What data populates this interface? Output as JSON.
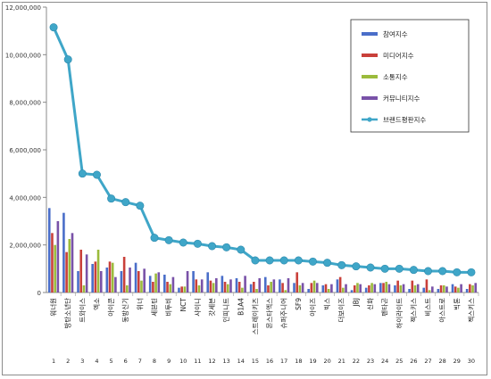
{
  "chart_data": {
    "type": "bar",
    "title": "",
    "xlabel": "",
    "ylabel": "",
    "ylim": [
      0,
      12000000
    ],
    "yticks": [
      "0",
      "2,000,000",
      "4,000,000",
      "6,000,000",
      "8,000,000",
      "10,000,000",
      "12,000,000"
    ],
    "grid": false,
    "legend_position": "top-right",
    "categories": [
      "워너원",
      "방탄소년단",
      "트와이스",
      "엑소",
      "아이콘",
      "동방신기",
      "위너",
      "세븐틴",
      "비투비",
      "NCT",
      "샤이니",
      "갓세븐",
      "인피니트",
      "B1A4",
      "스트레이키즈",
      "몬스타엑스",
      "슈퍼주니어",
      "SF9",
      "아이즈",
      "빅스",
      "더보이즈",
      "JBJ",
      "신화",
      "펜타곤",
      "하이라이트",
      "젝스키스",
      "비스트",
      "아스트로",
      "빅톤",
      "젝스키스"
    ],
    "rank_labels": [
      "1",
      "2",
      "3",
      "4",
      "5",
      "6",
      "7",
      "8",
      "9",
      "10",
      "11",
      "12",
      "13",
      "14",
      "15",
      "16",
      "17",
      "18",
      "19",
      "20",
      "21",
      "22",
      "23",
      "24",
      "25",
      "26",
      "27",
      "28",
      "29",
      "30"
    ],
    "series": [
      {
        "name": "참여지수",
        "color": "#4a6ec9",
        "values": [
          3550000,
          3350000,
          900000,
          1200000,
          1050000,
          900000,
          1250000,
          700000,
          750000,
          200000,
          900000,
          850000,
          700000,
          600000,
          350000,
          650000,
          550000,
          400000,
          150000,
          300000,
          550000,
          100000,
          200000,
          400000,
          300000,
          150000,
          200000,
          150000,
          350000,
          150000
        ]
      },
      {
        "name": "미디어지수",
        "color": "#c9403a",
        "values": [
          2500000,
          1700000,
          1800000,
          1300000,
          1300000,
          1500000,
          900000,
          450000,
          450000,
          250000,
          550000,
          500000,
          450000,
          450000,
          450000,
          300000,
          400000,
          850000,
          400000,
          350000,
          650000,
          300000,
          300000,
          400000,
          500000,
          500000,
          550000,
          300000,
          250000,
          350000
        ]
      },
      {
        "name": "소통지수",
        "color": "#9bbb3c",
        "values": [
          2000000,
          2250000,
          300000,
          1800000,
          1250000,
          300000,
          500000,
          800000,
          350000,
          250000,
          300000,
          400000,
          350000,
          200000,
          150000,
          450000,
          100000,
          300000,
          500000,
          150000,
          200000,
          400000,
          400000,
          450000,
          300000,
          300000,
          100000,
          300000,
          200000,
          300000
        ]
      },
      {
        "name": "커뮤니티지수",
        "color": "#7952a8",
        "values": [
          3000000,
          2500000,
          1600000,
          900000,
          650000,
          1050000,
          1000000,
          850000,
          650000,
          900000,
          550000,
          600000,
          550000,
          700000,
          600000,
          550000,
          600000,
          400000,
          400000,
          350000,
          350000,
          350000,
          350000,
          350000,
          350000,
          350000,
          250000,
          250000,
          350000,
          400000
        ]
      },
      {
        "name": "브랜드평판지수",
        "color": "#3fa6c8",
        "type": "line",
        "values": [
          11150000,
          9800000,
          5000000,
          4950000,
          3950000,
          3800000,
          3650000,
          2300000,
          2200000,
          2100000,
          2050000,
          1950000,
          1900000,
          1800000,
          1350000,
          1350000,
          1350000,
          1350000,
          1300000,
          1250000,
          1150000,
          1100000,
          1050000,
          1000000,
          1000000,
          950000,
          900000,
          900000,
          850000,
          850000
        ]
      }
    ]
  }
}
